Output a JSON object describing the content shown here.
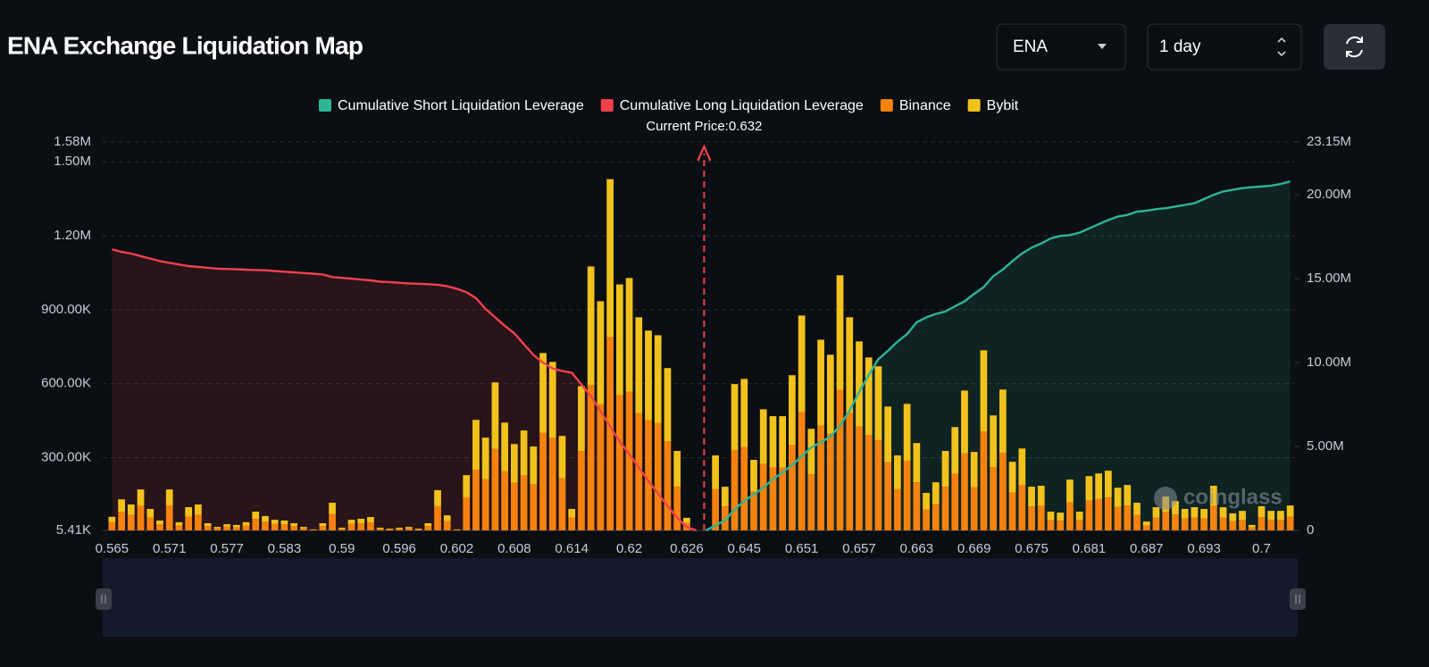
{
  "controls": {
    "symbol": "ENA",
    "interval": "1 day"
  },
  "chart_data": {
    "type": "bar",
    "title": "ENA Exchange Liquidation Map",
    "annotation": "Current Price:0.632",
    "watermark": "coinglass",
    "categories": [
      "0.565",
      null,
      null,
      null,
      null,
      null,
      "0.571",
      null,
      null,
      null,
      null,
      null,
      "0.577",
      null,
      null,
      null,
      null,
      null,
      "0.583",
      null,
      null,
      null,
      null,
      null,
      "0.59",
      null,
      null,
      null,
      null,
      null,
      "0.596",
      null,
      null,
      null,
      null,
      null,
      "0.602",
      null,
      null,
      null,
      null,
      null,
      "0.608",
      null,
      null,
      null,
      null,
      null,
      "0.614",
      null,
      null,
      null,
      null,
      null,
      "0.62",
      null,
      null,
      null,
      null,
      null,
      "0.626",
      null,
      null,
      null,
      null,
      null,
      "0.645",
      null,
      null,
      null,
      null,
      null,
      "0.651",
      null,
      null,
      null,
      null,
      null,
      "0.657",
      null,
      null,
      null,
      null,
      null,
      "0.663",
      null,
      null,
      null,
      null,
      null,
      "0.669",
      null,
      null,
      null,
      null,
      null,
      "0.675",
      null,
      null,
      null,
      null,
      null,
      "0.681",
      null,
      null,
      null,
      null,
      null,
      "0.687",
      null,
      null,
      null,
      null,
      null,
      "0.693",
      null,
      null,
      null,
      null,
      null,
      "0.7",
      null,
      null,
      null
    ],
    "ylim": [
      5410,
      1580000
    ],
    "yticks": [
      {
        "value": 5410,
        "label": "5.41K"
      },
      {
        "value": 300000,
        "label": "300.00K"
      },
      {
        "value": 600000,
        "label": "600.00K"
      },
      {
        "value": 900000,
        "label": "900.00K"
      },
      {
        "value": 1200000,
        "label": "1.20M"
      },
      {
        "value": 1500000,
        "label": "1.50M"
      },
      {
        "value": 1580000,
        "label": "1.58M"
      }
    ],
    "y2lim": [
      0,
      23150000
    ],
    "y2ticks": [
      0,
      {
        "value": 5000000,
        "label": "5.00M"
      },
      {
        "value": 10000000,
        "label": "10.00M"
      },
      {
        "value": 15000000,
        "label": "15.00M"
      },
      {
        "value": 20000000,
        "label": "20.00M"
      },
      {
        "value": 23150000,
        "label": "23.15M"
      }
    ],
    "grid": true,
    "series": [
      {
        "name": "Cumulative Short Liquidation Leverage",
        "type": "line",
        "axis": "y2",
        "color": "#2db596",
        "values": [
          null,
          null,
          null,
          null,
          null,
          null,
          null,
          null,
          null,
          null,
          null,
          null,
          null,
          null,
          null,
          null,
          null,
          null,
          null,
          null,
          null,
          null,
          null,
          null,
          null,
          null,
          null,
          null,
          null,
          null,
          null,
          null,
          null,
          null,
          null,
          null,
          null,
          null,
          null,
          null,
          null,
          null,
          null,
          null,
          null,
          null,
          null,
          null,
          null,
          null,
          null,
          null,
          null,
          null,
          null,
          null,
          null,
          null,
          null,
          null,
          null,
          null,
          0,
          300000,
          600000,
          1250000,
          1750000,
          2150000,
          2550000,
          3050000,
          3450000,
          3900000,
          4400000,
          4950000,
          5250000,
          5600000,
          6250000,
          7150000,
          8250000,
          9250000,
          10200000,
          10700000,
          11250000,
          11700000,
          12400000,
          12700000,
          12900000,
          13050000,
          13350000,
          13650000,
          14100000,
          14500000,
          15150000,
          15550000,
          16050000,
          16500000,
          16850000,
          17100000,
          17400000,
          17550000,
          17600000,
          17750000,
          18000000,
          18250000,
          18500000,
          18700000,
          18800000,
          19000000,
          19050000,
          19150000,
          19200000,
          19300000,
          19400000,
          19500000,
          19750000,
          20000000,
          20200000,
          20300000,
          20400000,
          20450000,
          20500000,
          20550000,
          20650000,
          20800000
        ]
      },
      {
        "name": "Cumulative Long Liquidation Leverage",
        "type": "line",
        "axis": "y2",
        "color": "#f0414e",
        "values": [
          16750000,
          16600000,
          16500000,
          16350000,
          16200000,
          16050000,
          15950000,
          15850000,
          15750000,
          15700000,
          15650000,
          15600000,
          15580000,
          15560000,
          15540000,
          15520000,
          15500000,
          15460000,
          15420000,
          15380000,
          15340000,
          15300000,
          15250000,
          15100000,
          15050000,
          15000000,
          14950000,
          14900000,
          14820000,
          14800000,
          14760000,
          14720000,
          14700000,
          14670000,
          14640000,
          14550000,
          14400000,
          14200000,
          13850000,
          13200000,
          12700000,
          12200000,
          11750000,
          11100000,
          10450000,
          10000000,
          9650000,
          9500000,
          9400000,
          8700000,
          8000000,
          7100000,
          6200000,
          5300000,
          4550000,
          3750000,
          2950000,
          2200000,
          1450000,
          750000,
          200000,
          0,
          null,
          null,
          null,
          null,
          null,
          null,
          null,
          null,
          null,
          null,
          null,
          null,
          null,
          null,
          null,
          null,
          null,
          null,
          null,
          null,
          null,
          null,
          null,
          null,
          null,
          null,
          null,
          null,
          null,
          null,
          null,
          null,
          null,
          null,
          null,
          null,
          null,
          null,
          null,
          null,
          null,
          null,
          null,
          null,
          null,
          null,
          null,
          null,
          null,
          null,
          null,
          null,
          null,
          null,
          null,
          null,
          null,
          null,
          null,
          null,
          null,
          null
        ]
      },
      {
        "name": "Binance",
        "type": "bar",
        "color": "#f5820f",
        "values": [
          33000,
          75000,
          63000,
          100000,
          52000,
          24000,
          100000,
          20000,
          56000,
          63000,
          17000,
          8000,
          15000,
          13000,
          20000,
          46000,
          35000,
          26000,
          24000,
          17000,
          8000,
          2000,
          17000,
          67000,
          7000,
          26000,
          28000,
          32000,
          7000,
          4000,
          7000,
          8000,
          4000,
          17000,
          98000,
          37000,
          2000,
          134000,
          246000,
          207000,
          330000,
          240000,
          193000,
          223000,
          187000,
          395000,
          376000,
          211000,
          52000,
          322000,
          589000,
          511000,
          783000,
          548000,
          563000,
          475000,
          446000,
          435000,
          362000,
          177000,
          31000,
          null,
          null,
          167000,
          97000,
          326000,
          338000,
          157000,
          270000,
          255000,
          255000,
          346000,
          479000,
          227000,
          425000,
          392000,
          569000,
          475000,
          421000,
          386000,
          366000,
          276000,
          167000,
          282000,
          195000,
          84000,
          107000,
          177000,
          230000,
          312000,
          175000,
          402000,
          256000,
          314000,
          153000,
          183000,
          97000,
          100000,
          42000,
          40000,
          113000,
          42000,
          121000,
          127000,
          133000,
          95000,
          101000,
          62000,
          20000,
          52000,
          75000,
          65000,
          48000,
          52000,
          48000,
          100000,
          52000,
          38000,
          43000,
          12000,
          54000,
          43000,
          43000,
          56000
        ]
      },
      {
        "name": "Bybit",
        "type": "bar",
        "color": "#f2c21c",
        "values": [
          22000,
          51000,
          42000,
          66000,
          35000,
          16000,
          66000,
          13000,
          38000,
          42000,
          12000,
          6000,
          10000,
          9000,
          13000,
          30000,
          23000,
          17000,
          16000,
          12000,
          6000,
          2000,
          12000,
          45000,
          4000,
          17000,
          19000,
          22000,
          4000,
          3000,
          4000,
          6000,
          3000,
          12000,
          65000,
          24000,
          2000,
          90000,
          202000,
          169000,
          270000,
          197000,
          157000,
          182000,
          153000,
          324000,
          307000,
          172000,
          35000,
          263000,
          481000,
          418000,
          641000,
          449000,
          460000,
          389000,
          364000,
          356000,
          296000,
          145000,
          20000,
          null,
          null,
          137000,
          80000,
          267000,
          276000,
          129000,
          221000,
          208000,
          208000,
          283000,
          392000,
          185000,
          348000,
          320000,
          465000,
          389000,
          345000,
          315000,
          299000,
          226000,
          137000,
          231000,
          159000,
          68000,
          88000,
          145000,
          189000,
          255000,
          143000,
          328000,
          210000,
          257000,
          125000,
          149000,
          80000,
          81000,
          34000,
          32000,
          93000,
          34000,
          99000,
          104000,
          109000,
          78000,
          83000,
          50000,
          16000,
          42000,
          62000,
          54000,
          39000,
          42000,
          39000,
          81000,
          42000,
          31000,
          36000,
          10000,
          44000,
          36000,
          36000,
          45000
        ]
      }
    ]
  }
}
